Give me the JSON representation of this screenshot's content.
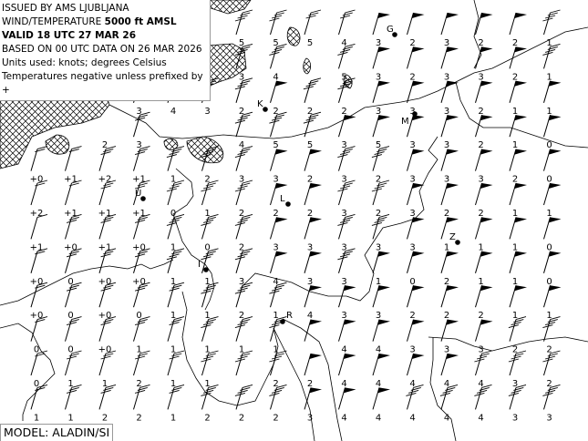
{
  "header": {
    "line1": "ISSUED BY AMS LJUBLJANA",
    "line2_prefix": "WIND/TEMPERATURE ",
    "line2_level": "5000 ft AMSL",
    "line3": "VALID 18 UTC 27 MAR 26",
    "line4": "BASED ON 00 UTC DATA ON 26 MAR 2026",
    "line5": "Units used: knots; degrees Celsius",
    "line6": "Temperatures negative unless prefixed by +"
  },
  "model_label": "MODEL: ALADIN/SI",
  "colors": {
    "ink": "#000000",
    "background": "#ffffff",
    "terrain_hatch": "#000000"
  },
  "temperature_grid": [
    [
      "",
      "",
      "",
      "",
      "",
      "",
      "5",
      "5",
      "5",
      "4",
      "3",
      "2",
      "3",
      "2",
      "2",
      "1"
    ],
    [
      "",
      "",
      "",
      "",
      "",
      "",
      "3",
      "4",
      "",
      "5",
      "3",
      "2",
      "3",
      "3",
      "2",
      "1"
    ],
    [
      "",
      "",
      "",
      "3",
      "4",
      "3",
      "2",
      "2",
      "2",
      "2",
      "3",
      "3",
      "3",
      "2",
      "1",
      "1"
    ],
    [
      "",
      "",
      "2",
      "3",
      "",
      "",
      "4",
      "5",
      "5",
      "3",
      "5",
      "3",
      "3",
      "2",
      "1",
      "0"
    ],
    [
      "+0",
      "+1",
      "+2",
      "+1",
      "1",
      "2",
      "3",
      "3",
      "2",
      "3",
      "2",
      "3",
      "3",
      "3",
      "2",
      "0"
    ],
    [
      "+2",
      "+1",
      "+1",
      "+1",
      "0",
      "1",
      "2",
      "2",
      "2",
      "3",
      "2",
      "3",
      "2",
      "2",
      "1",
      "1"
    ],
    [
      "+1",
      "+0",
      "+1",
      "+0",
      "1",
      "0",
      "2",
      "3",
      "3",
      "3",
      "3",
      "3",
      "1",
      "1",
      "1",
      "0"
    ],
    [
      "+0",
      "0",
      "+0",
      "+0",
      "1",
      "1",
      "3",
      "4",
      "3",
      "3",
      "1",
      "0",
      "2",
      "1",
      "1",
      "0"
    ],
    [
      "+0",
      "0",
      "+0",
      "0",
      "1",
      "1",
      "2",
      "1",
      "4",
      "3",
      "3",
      "2",
      "2",
      "2",
      "1",
      "1"
    ],
    [
      "0",
      "0",
      "+0",
      "1",
      "1",
      "1",
      "1",
      "1",
      "",
      "4",
      "4",
      "3",
      "3",
      "3",
      "2",
      "2"
    ],
    [
      "0",
      "1",
      "1",
      "2",
      "1",
      "1",
      "",
      "2",
      "2",
      "4",
      "4",
      "4",
      "4",
      "4",
      "3",
      "2"
    ],
    [
      "1",
      "1",
      "2",
      "2",
      "1",
      "2",
      "2",
      "2",
      "3",
      "4",
      "4",
      "4",
      "4",
      "4",
      "3",
      "3"
    ]
  ],
  "wind_barbs": [
    "------4433PPPPP4",
    "------44-4PPPPP4",
    "---4444P44PPPPPP",
    "---3--444PPPPPPP",
    "2233444PP44PPPPP",
    "2233444PP44PPPPP",
    "1333444PP44PPPPP",
    "2333444PP4PPPPPP",
    "23333444PPPPPPPP",
    "23333444PPPPPP44",
    "23333444PPPPP444",
    "23333444PPP44444"
  ],
  "stations": [
    {
      "id": "G"
    },
    {
      "id": "K"
    },
    {
      "id": "M"
    },
    {
      "id": "U"
    },
    {
      "id": "L"
    },
    {
      "id": "Z"
    },
    {
      "id": "I"
    },
    {
      "id": "R"
    }
  ]
}
